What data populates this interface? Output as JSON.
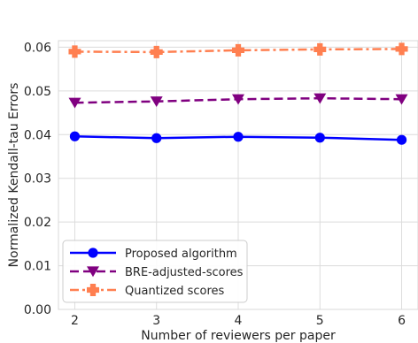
{
  "chart_data": {
    "type": "line",
    "title": "",
    "xlabel": "Number of reviewers per paper",
    "ylabel": "Normalized Kendall-tau Errors",
    "x": [
      2,
      3,
      4,
      5,
      6
    ],
    "xlim": [
      1.8,
      6.2
    ],
    "ylim": [
      0.0,
      0.0615
    ],
    "xticks": [
      "2",
      "3",
      "4",
      "5",
      "6"
    ],
    "yticks": [
      "0.00",
      "0.01",
      "0.02",
      "0.03",
      "0.04",
      "0.05",
      "0.06"
    ],
    "ytick_values": [
      0.0,
      0.01,
      0.02,
      0.03,
      0.04,
      0.05,
      0.06
    ],
    "grid": true,
    "legend_position": "lower-left",
    "series": [
      {
        "name": "Proposed algorithm",
        "values": [
          0.0396,
          0.0392,
          0.0395,
          0.0393,
          0.0388
        ],
        "color": "#0000ff",
        "line_style": "solid",
        "marker": "circle"
      },
      {
        "name": "BRE-adjusted-scores",
        "values": [
          0.0473,
          0.0476,
          0.0481,
          0.0483,
          0.0481
        ],
        "color": "#800080",
        "line_style": "dashed",
        "marker": "triangle-down"
      },
      {
        "name": "Quantized scores",
        "values": [
          0.059,
          0.0589,
          0.0593,
          0.0595,
          0.0596
        ],
        "color": "#ff7f50",
        "line_style": "dashdot",
        "marker": "plus"
      }
    ]
  }
}
